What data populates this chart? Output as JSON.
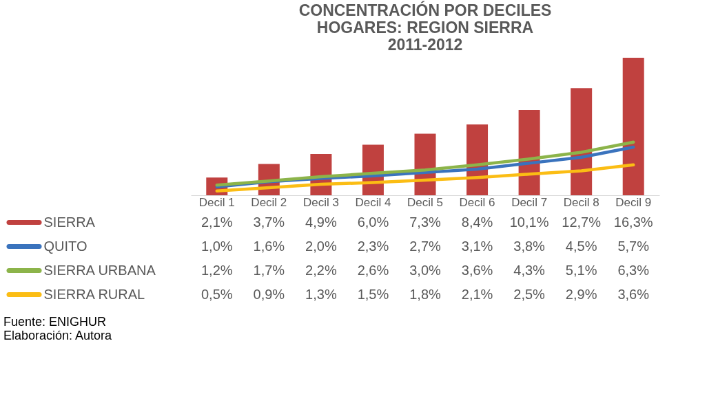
{
  "chart_data": {
    "type": "bar",
    "title": "CONCENTRACIÓN POR DECILES\nHOGARES: REGION SIERRA\n2011-2012",
    "categories": [
      "Decil 1",
      "Decil 2",
      "Decil 3",
      "Decil 4",
      "Decil 5",
      "Decil 6",
      "Decil 7",
      "Decil 8",
      "Decil 9"
    ],
    "legend": "bottom",
    "grid": false,
    "series": [
      {
        "name": "SIERRA",
        "color": "#c0413f",
        "values": [
          2.1,
          3.7,
          4.9,
          6.0,
          7.3,
          8.4,
          10.1,
          12.7,
          16.3
        ],
        "value_labels": [
          "2,1%",
          "3,7%",
          "4,9%",
          "6,0%",
          "7,3%",
          "8,4%",
          "10,1%",
          "12,7%",
          "16,3%"
        ]
      },
      {
        "name": "QUITO",
        "type": "line",
        "color": "#3a73bd",
        "values": [
          1.0,
          1.6,
          2.0,
          2.3,
          2.7,
          3.1,
          3.8,
          4.5,
          5.7
        ],
        "value_labels": [
          "1,0%",
          "1,6%",
          "2,0%",
          "2,3%",
          "2,7%",
          "3,1%",
          "3,8%",
          "4,5%",
          "5,7%"
        ]
      },
      {
        "name": "SIERRA URBANA",
        "type": "line",
        "color": "#8cb44a",
        "values": [
          1.2,
          1.7,
          2.2,
          2.6,
          3.0,
          3.6,
          4.3,
          5.1,
          6.3
        ],
        "value_labels": [
          "1,2%",
          "1,7%",
          "2,2%",
          "2,6%",
          "3,0%",
          "3,6%",
          "4,3%",
          "5,1%",
          "6,3%"
        ]
      },
      {
        "name": "SIERRA RURAL",
        "type": "line",
        "color": "#fbbd14",
        "values": [
          0.5,
          0.9,
          1.3,
          1.5,
          1.8,
          2.1,
          2.5,
          2.9,
          3.6
        ],
        "value_labels": [
          "0,5%",
          "0,9%",
          "1,3%",
          "1,5%",
          "1,8%",
          "2,1%",
          "2,5%",
          "2,9%",
          "3,6%"
        ]
      }
    ],
    "annotations": [
      "Fuente: ENIGHUR",
      "Elaboración: Autora"
    ]
  }
}
